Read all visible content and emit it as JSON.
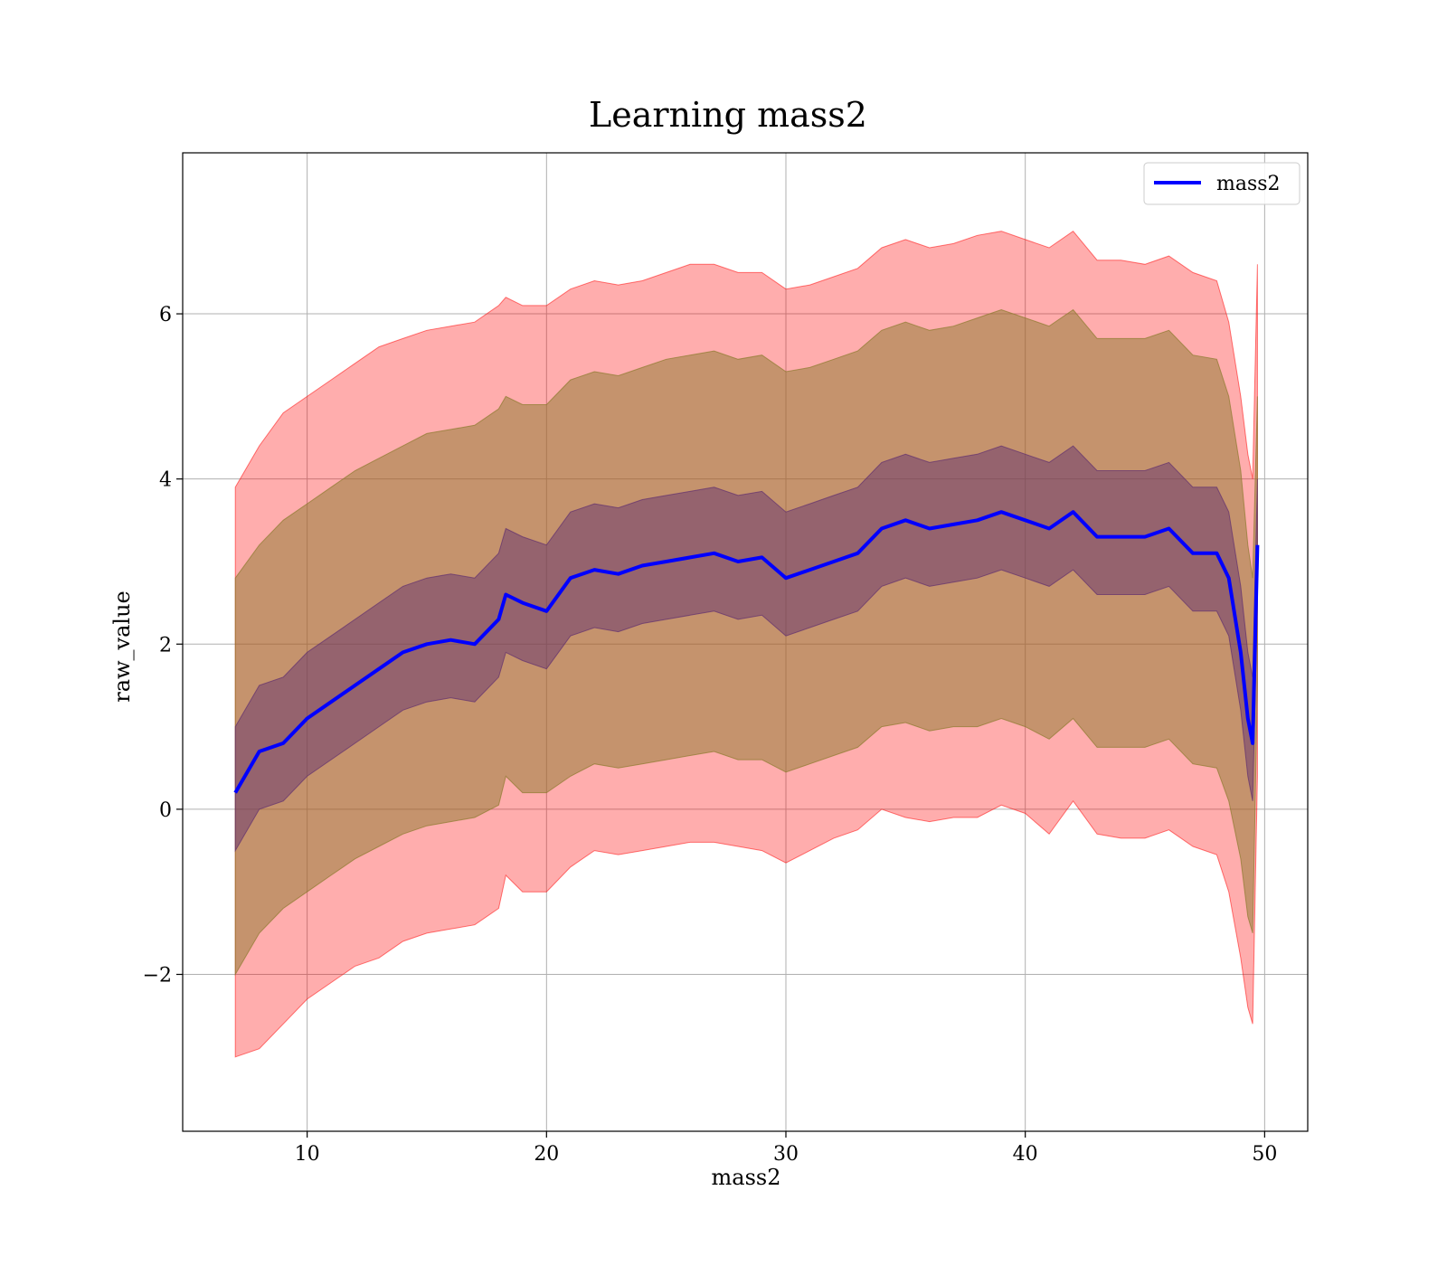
{
  "chart_data": {
    "type": "line",
    "title": "Learning mass2",
    "xlabel": "mass2",
    "ylabel": "raw_value",
    "xlim": [
      4.8,
      51.8
    ],
    "ylim": [
      -3.9,
      7.95
    ],
    "xticks": [
      10,
      20,
      30,
      40,
      50
    ],
    "yticks": [
      -2,
      0,
      2,
      4,
      6
    ],
    "xtick_labels": [
      "10",
      "20",
      "30",
      "40",
      "50"
    ],
    "ytick_labels": [
      "−2",
      "0",
      "2",
      "4",
      "6"
    ],
    "grid": true,
    "legend": {
      "placement": "top-right",
      "entries": [
        "mass2"
      ]
    },
    "series": [
      {
        "name": "mass2",
        "color": "#0000ff",
        "x": [
          7.0,
          8.0,
          9.0,
          10.0,
          11.0,
          12.0,
          13.0,
          14.0,
          15.0,
          16.0,
          17.0,
          18.0,
          18.3,
          19.0,
          20.0,
          21.0,
          22.0,
          23.0,
          24.0,
          25.0,
          26.0,
          27.0,
          28.0,
          29.0,
          30.0,
          31.0,
          32.0,
          33.0,
          34.0,
          35.0,
          36.0,
          37.0,
          38.0,
          39.0,
          40.0,
          41.0,
          42.0,
          43.0,
          44.0,
          45.0,
          46.0,
          47.0,
          48.0,
          48.5,
          49.0,
          49.3,
          49.5,
          49.7
        ],
        "y": [
          0.2,
          0.7,
          0.8,
          1.1,
          1.3,
          1.5,
          1.7,
          1.9,
          2.0,
          2.05,
          2.0,
          2.3,
          2.6,
          2.5,
          2.4,
          2.8,
          2.9,
          2.85,
          2.95,
          3.0,
          3.05,
          3.1,
          3.0,
          3.05,
          2.8,
          2.9,
          3.0,
          3.1,
          3.4,
          3.5,
          3.4,
          3.45,
          3.5,
          3.6,
          3.5,
          3.4,
          3.6,
          3.3,
          3.3,
          3.3,
          3.4,
          3.1,
          3.1,
          2.8,
          1.9,
          1.1,
          0.8,
          3.2
        ]
      }
    ],
    "bands": [
      {
        "color": "#ff0000",
        "opacity": 0.32,
        "lower": [
          -3.0,
          -2.9,
          -2.6,
          -2.3,
          -2.1,
          -1.9,
          -1.8,
          -1.6,
          -1.5,
          -1.45,
          -1.4,
          -1.2,
          -0.8,
          -1.0,
          -1.0,
          -0.7,
          -0.5,
          -0.55,
          -0.5,
          -0.45,
          -0.4,
          -0.4,
          -0.45,
          -0.5,
          -0.65,
          -0.5,
          -0.35,
          -0.25,
          0.0,
          -0.1,
          -0.15,
          -0.1,
          -0.1,
          0.05,
          -0.05,
          -0.3,
          0.1,
          -0.3,
          -0.35,
          -0.35,
          -0.25,
          -0.45,
          -0.55,
          -1.0,
          -1.8,
          -2.4,
          -2.6,
          0.4
        ],
        "upper": [
          3.9,
          4.4,
          4.8,
          5.0,
          5.2,
          5.4,
          5.6,
          5.7,
          5.8,
          5.85,
          5.9,
          6.1,
          6.2,
          6.1,
          6.1,
          6.3,
          6.4,
          6.35,
          6.4,
          6.5,
          6.6,
          6.6,
          6.5,
          6.5,
          6.3,
          6.35,
          6.45,
          6.55,
          6.8,
          6.9,
          6.8,
          6.85,
          6.95,
          7.0,
          6.9,
          6.8,
          7.0,
          6.65,
          6.65,
          6.6,
          6.7,
          6.5,
          6.4,
          5.9,
          5.0,
          4.3,
          4.0,
          6.6
        ]
      },
      {
        "color": "#8b7a2e",
        "opacity": 0.5,
        "lower": [
          -2.0,
          -1.5,
          -1.2,
          -1.0,
          -0.8,
          -0.6,
          -0.45,
          -0.3,
          -0.2,
          -0.15,
          -0.1,
          0.05,
          0.4,
          0.2,
          0.2,
          0.4,
          0.55,
          0.5,
          0.55,
          0.6,
          0.65,
          0.7,
          0.6,
          0.6,
          0.45,
          0.55,
          0.65,
          0.75,
          1.0,
          1.05,
          0.95,
          1.0,
          1.0,
          1.1,
          1.0,
          0.85,
          1.1,
          0.75,
          0.75,
          0.75,
          0.85,
          0.55,
          0.5,
          0.1,
          -0.6,
          -1.3,
          -1.5,
          1.5
        ],
        "upper": [
          2.8,
          3.2,
          3.5,
          3.7,
          3.9,
          4.1,
          4.25,
          4.4,
          4.55,
          4.6,
          4.65,
          4.85,
          5.0,
          4.9,
          4.9,
          5.2,
          5.3,
          5.25,
          5.35,
          5.45,
          5.5,
          5.55,
          5.45,
          5.5,
          5.3,
          5.35,
          5.45,
          5.55,
          5.8,
          5.9,
          5.8,
          5.85,
          5.95,
          6.05,
          5.95,
          5.85,
          6.05,
          5.7,
          5.7,
          5.7,
          5.8,
          5.5,
          5.45,
          5.0,
          4.1,
          3.2,
          2.8,
          5.0
        ]
      },
      {
        "color": "#5a2a6e",
        "opacity": 0.45,
        "lower": [
          -0.5,
          0.0,
          0.1,
          0.4,
          0.6,
          0.8,
          1.0,
          1.2,
          1.3,
          1.35,
          1.3,
          1.6,
          1.9,
          1.8,
          1.7,
          2.1,
          2.2,
          2.15,
          2.25,
          2.3,
          2.35,
          2.4,
          2.3,
          2.35,
          2.1,
          2.2,
          2.3,
          2.4,
          2.7,
          2.8,
          2.7,
          2.75,
          2.8,
          2.9,
          2.8,
          2.7,
          2.9,
          2.6,
          2.6,
          2.6,
          2.7,
          2.4,
          2.4,
          2.1,
          1.2,
          0.4,
          0.1,
          2.5
        ],
        "upper": [
          1.0,
          1.5,
          1.6,
          1.9,
          2.1,
          2.3,
          2.5,
          2.7,
          2.8,
          2.85,
          2.8,
          3.1,
          3.4,
          3.3,
          3.2,
          3.6,
          3.7,
          3.65,
          3.75,
          3.8,
          3.85,
          3.9,
          3.8,
          3.85,
          3.6,
          3.7,
          3.8,
          3.9,
          4.2,
          4.3,
          4.2,
          4.25,
          4.3,
          4.4,
          4.3,
          4.2,
          4.4,
          4.1,
          4.1,
          4.1,
          4.2,
          3.9,
          3.9,
          3.6,
          2.7,
          1.9,
          1.6,
          4.0
        ]
      }
    ]
  }
}
